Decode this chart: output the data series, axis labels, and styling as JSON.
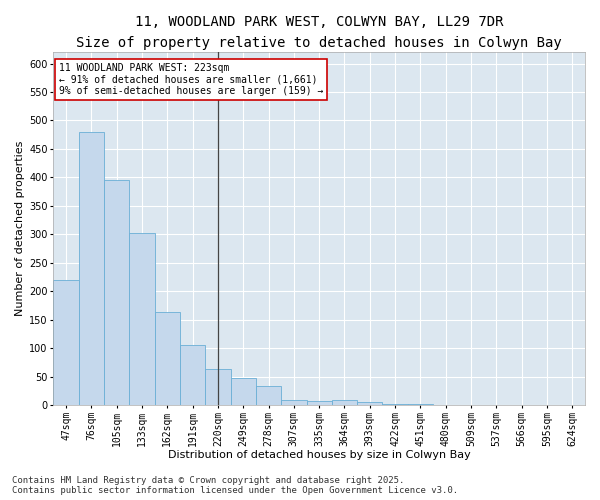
{
  "title1": "11, WOODLAND PARK WEST, COLWYN BAY, LL29 7DR",
  "title2": "Size of property relative to detached houses in Colwyn Bay",
  "xlabel": "Distribution of detached houses by size in Colwyn Bay",
  "ylabel": "Number of detached properties",
  "categories": [
    "47sqm",
    "76sqm",
    "105sqm",
    "133sqm",
    "162sqm",
    "191sqm",
    "220sqm",
    "249sqm",
    "278sqm",
    "307sqm",
    "335sqm",
    "364sqm",
    "393sqm",
    "422sqm",
    "451sqm",
    "480sqm",
    "509sqm",
    "537sqm",
    "566sqm",
    "595sqm",
    "624sqm"
  ],
  "values": [
    219,
    480,
    395,
    302,
    163,
    105,
    63,
    47,
    33,
    8,
    7,
    8,
    6,
    1,
    1,
    0,
    0,
    0,
    0,
    0,
    0
  ],
  "bar_color": "#c5d8ec",
  "bar_edge_color": "#6aaed6",
  "highlight_index": 6,
  "highlight_line_color": "#444444",
  "annotation_text": "11 WOODLAND PARK WEST: 223sqm\n← 91% of detached houses are smaller (1,661)\n9% of semi-detached houses are larger (159) →",
  "annotation_box_facecolor": "#ffffff",
  "annotation_box_edgecolor": "#cc0000",
  "ylim": [
    0,
    620
  ],
  "yticks": [
    0,
    50,
    100,
    150,
    200,
    250,
    300,
    350,
    400,
    450,
    500,
    550,
    600
  ],
  "footer": "Contains HM Land Registry data © Crown copyright and database right 2025.\nContains public sector information licensed under the Open Government Licence v3.0.",
  "fig_facecolor": "#ffffff",
  "axes_facecolor": "#dce7f0",
  "grid_color": "#ffffff",
  "title1_fontsize": 10,
  "title2_fontsize": 9,
  "axis_label_fontsize": 8,
  "tick_fontsize": 7,
  "annotation_fontsize": 7,
  "footer_fontsize": 6.5
}
